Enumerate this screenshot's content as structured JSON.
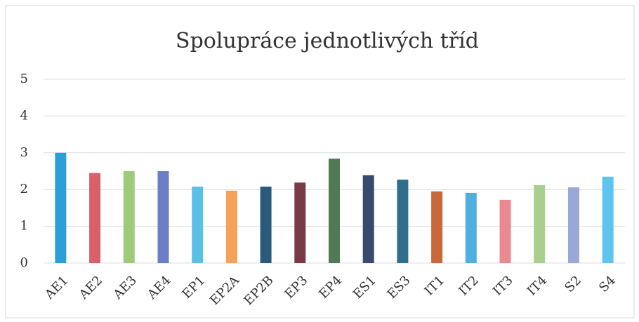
{
  "chart_data": {
    "type": "bar",
    "title": "Spolupráce jednotlivých tříd",
    "categories": [
      "AE1",
      "AE2",
      "AE3",
      "AE4",
      "EP1",
      "EP2A",
      "EP2B",
      "EP3",
      "EP4",
      "ES1",
      "ES3",
      "IT1",
      "IT2",
      "IT3",
      "IT4",
      "S2",
      "S4"
    ],
    "values": [
      3.0,
      2.45,
      2.5,
      2.5,
      2.08,
      1.97,
      2.08,
      2.19,
      2.84,
      2.39,
      2.27,
      1.95,
      1.91,
      1.72,
      2.12,
      2.06,
      2.35
    ],
    "colors": [
      "#2a9fd8",
      "#d9606a",
      "#9ccc7a",
      "#6c7fc4",
      "#5bc0e6",
      "#f4a25a",
      "#2a5b7c",
      "#7a3a45",
      "#4f7a55",
      "#3a4a6e",
      "#2f6f8c",
      "#c9693a",
      "#4fb0e0",
      "#e88a90",
      "#a9cf8f",
      "#9aa8d8",
      "#5cc4ee"
    ],
    "ylim": [
      0,
      5
    ],
    "yticks": [
      0,
      1,
      2,
      3,
      4,
      5
    ],
    "grid": true
  }
}
